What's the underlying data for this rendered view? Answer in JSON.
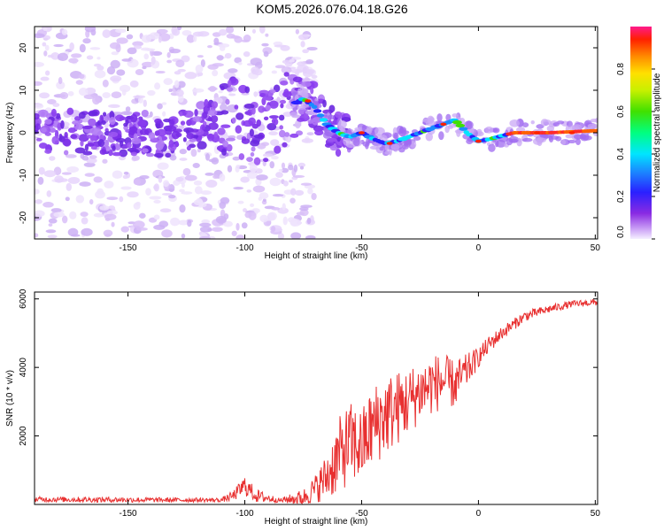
{
  "chart_data": [
    {
      "type": "heatmap",
      "title": "KOM5.2026.076.04.18.G26",
      "xlabel": "Height of straight line (km)",
      "ylabel": "Frequency (Hz)",
      "xlim": [
        -190,
        51
      ],
      "ylim": [
        -25,
        25
      ],
      "xticks": [
        -150,
        -100,
        -50,
        0,
        50
      ],
      "yticks": [
        -20,
        -10,
        0,
        10,
        20
      ],
      "colorbar": {
        "label": "Normalized spectral amplitude",
        "range": [
          0,
          1
        ],
        "ticks": [
          "0.0",
          "0.2",
          "0.4",
          "0.6",
          "0.8"
        ]
      },
      "ridge": [
        {
          "x": -190,
          "y": 0.5
        },
        {
          "x": -160,
          "y": 0
        },
        {
          "x": -130,
          "y": -0.5
        },
        {
          "x": -105,
          "y": 4
        },
        {
          "x": -95,
          "y": 1
        },
        {
          "x": -85,
          "y": 5
        },
        {
          "x": -75,
          "y": 8
        },
        {
          "x": -70,
          "y": 6
        },
        {
          "x": -65,
          "y": 2
        },
        {
          "x": -60,
          "y": 0
        },
        {
          "x": -55,
          "y": -1
        },
        {
          "x": -50,
          "y": 0
        },
        {
          "x": -45,
          "y": -1.5
        },
        {
          "x": -40,
          "y": -2.5
        },
        {
          "x": -35,
          "y": -2
        },
        {
          "x": -30,
          "y": -1
        },
        {
          "x": -20,
          "y": 1
        },
        {
          "x": -10,
          "y": 3
        },
        {
          "x": -5,
          "y": 0
        },
        {
          "x": 0,
          "y": -2
        },
        {
          "x": 5,
          "y": -1.5
        },
        {
          "x": 15,
          "y": 0
        },
        {
          "x": 30,
          "y": 0
        },
        {
          "x": 51,
          "y": 0.5
        }
      ]
    },
    {
      "type": "line",
      "xlabel": "Height of straight line (km)",
      "ylabel": "SNR (10 * v/v)",
      "xlim": [
        -190,
        51
      ],
      "ylim": [
        0,
        6200
      ],
      "xticks": [
        -150,
        -100,
        -50,
        0,
        50
      ],
      "yticks": [
        2000,
        4000,
        6000
      ],
      "color": "#e83030",
      "series": [
        {
          "name": "SNR",
          "x": [
            -190,
            -160,
            -130,
            -110,
            -105,
            -100,
            -95,
            -85,
            -75,
            -70,
            -65,
            -60,
            -55,
            -50,
            -45,
            -40,
            -35,
            -30,
            -25,
            -20,
            -15,
            -10,
            -5,
            0,
            5,
            10,
            20,
            30,
            40,
            50
          ],
          "values": [
            150,
            140,
            130,
            130,
            250,
            550,
            250,
            120,
            200,
            450,
            800,
            1400,
            1800,
            1700,
            2300,
            2600,
            2800,
            3000,
            3300,
            3500,
            3600,
            3500,
            3900,
            4300,
            4700,
            5000,
            5500,
            5700,
            5850,
            5900
          ],
          "spread": [
            80,
            80,
            70,
            60,
            150,
            300,
            200,
            60,
            250,
            400,
            700,
            1100,
            1200,
            1100,
            1200,
            1200,
            1100,
            1000,
            900,
            900,
            800,
            700,
            500,
            300,
            250,
            200,
            150,
            120,
            100,
            100
          ]
        }
      ]
    }
  ]
}
